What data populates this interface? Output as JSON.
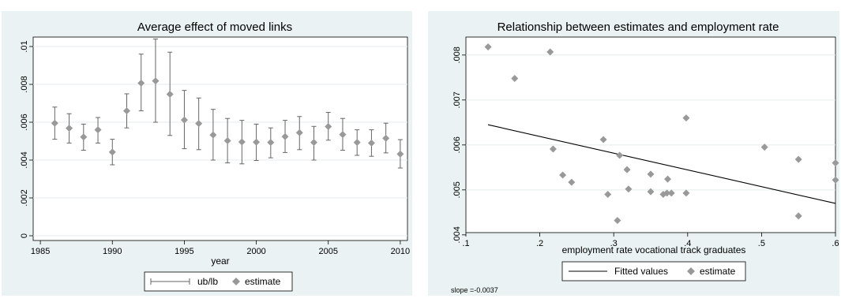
{
  "chart_data": [
    {
      "type": "scatter",
      "title": "Average effect of moved links",
      "xlabel": "year",
      "ylabel": "",
      "xlim": [
        1984.5,
        2010.5
      ],
      "ylim": [
        -0.00025,
        0.0105
      ],
      "x_ticks": [
        1985,
        1990,
        1995,
        2000,
        2005,
        2010
      ],
      "x_tick_labels": [
        "1985",
        "1990",
        "1995",
        "2000",
        "2005",
        "2010"
      ],
      "y_ticks": [
        0,
        0.002,
        0.004,
        0.006,
        0.008,
        0.01
      ],
      "y_tick_labels": [
        "0",
        ".002",
        ".004",
        ".006",
        ".008",
        ".01"
      ],
      "grid": true,
      "legend": {
        "position": "bottom",
        "entries": [
          {
            "label": "ub/lb",
            "kind": "range"
          },
          {
            "label": "estimate",
            "kind": "marker"
          }
        ]
      },
      "series": [
        {
          "name": "estimate",
          "marker": "diamond",
          "color": "#999999",
          "x": [
            1986,
            1987,
            1988,
            1989,
            1990,
            1991,
            1992,
            1993,
            1994,
            1995,
            1996,
            1997,
            1998,
            1999,
            2000,
            2001,
            2002,
            2003,
            2004,
            2005,
            2006,
            2007,
            2008,
            2009,
            2010
          ],
          "y": [
            0.00595,
            0.00568,
            0.00522,
            0.0056,
            0.00442,
            0.0066,
            0.00807,
            0.00818,
            0.00748,
            0.00612,
            0.00593,
            0.00533,
            0.00502,
            0.00496,
            0.00495,
            0.00493,
            0.00524,
            0.00545,
            0.00493,
            0.00577,
            0.00535,
            0.00493,
            0.0049,
            0.00515,
            0.00432
          ]
        },
        {
          "name": "ub/lb",
          "kind": "range",
          "color": "#666666",
          "x": [
            1986,
            1987,
            1988,
            1989,
            1990,
            1991,
            1992,
            1993,
            1994,
            1995,
            1996,
            1997,
            1998,
            1999,
            2000,
            2001,
            2002,
            2003,
            2004,
            2005,
            2006,
            2007,
            2008,
            2009,
            2010
          ],
          "upper": [
            0.0068,
            0.00645,
            0.0059,
            0.00625,
            0.0051,
            0.0075,
            0.0096,
            0.0104,
            0.0097,
            0.00768,
            0.00728,
            0.00668,
            0.0062,
            0.0061,
            0.0059,
            0.0057,
            0.0061,
            0.0063,
            0.00578,
            0.00652,
            0.0062,
            0.0056,
            0.0056,
            0.00595,
            0.00508
          ],
          "lower": [
            0.0051,
            0.0049,
            0.00452,
            0.0049,
            0.00375,
            0.0057,
            0.0066,
            0.006,
            0.0053,
            0.0046,
            0.00455,
            0.004,
            0.00385,
            0.0038,
            0.00398,
            0.00412,
            0.0044,
            0.00455,
            0.004,
            0.00505,
            0.00452,
            0.00425,
            0.0042,
            0.00438,
            0.00358
          ]
        }
      ]
    },
    {
      "type": "scatter",
      "title": "Relationship between estimates and employment rate",
      "xlabel": "employment rate vocational track graduates",
      "ylabel": "",
      "xlim": [
        0.1,
        0.6
      ],
      "ylim": [
        0.00405,
        0.0084
      ],
      "x_ticks": [
        0.1,
        0.2,
        0.3,
        0.4,
        0.5,
        0.6
      ],
      "x_tick_labels": [
        ".1",
        ".2",
        ".3",
        ".4",
        ".5",
        ".6"
      ],
      "y_ticks": [
        0.004,
        0.005,
        0.006,
        0.007,
        0.008
      ],
      "y_tick_labels": [
        ".004",
        ".005",
        ".006",
        ".007",
        ".008"
      ],
      "grid": true,
      "legend": {
        "position": "bottom",
        "entries": [
          {
            "label": "Fitted values",
            "kind": "line"
          },
          {
            "label": "estimate",
            "kind": "marker"
          }
        ]
      },
      "note": "slope =-0.0037",
      "series": [
        {
          "name": "estimate",
          "marker": "diamond",
          "color": "#999999",
          "x": [
            0.13,
            0.166,
            0.214,
            0.218,
            0.231,
            0.243,
            0.286,
            0.292,
            0.305,
            0.308,
            0.318,
            0.32,
            0.35,
            0.35,
            0.367,
            0.372,
            0.373,
            0.378,
            0.398,
            0.398,
            0.504,
            0.55,
            0.55,
            0.6,
            0.6
          ],
          "y": [
            0.00818,
            0.00748,
            0.00807,
            0.00591,
            0.00533,
            0.00517,
            0.00612,
            0.0049,
            0.00432,
            0.00577,
            0.00545,
            0.00502,
            0.00535,
            0.00496,
            0.0049,
            0.00493,
            0.00524,
            0.00493,
            0.00493,
            0.0066,
            0.00595,
            0.00442,
            0.00568,
            0.00522,
            0.0056
          ]
        },
        {
          "name": "Fitted values",
          "kind": "line",
          "color": "#000000",
          "x": [
            0.13,
            0.6
          ],
          "y": [
            0.00645,
            0.0047
          ]
        }
      ]
    }
  ]
}
